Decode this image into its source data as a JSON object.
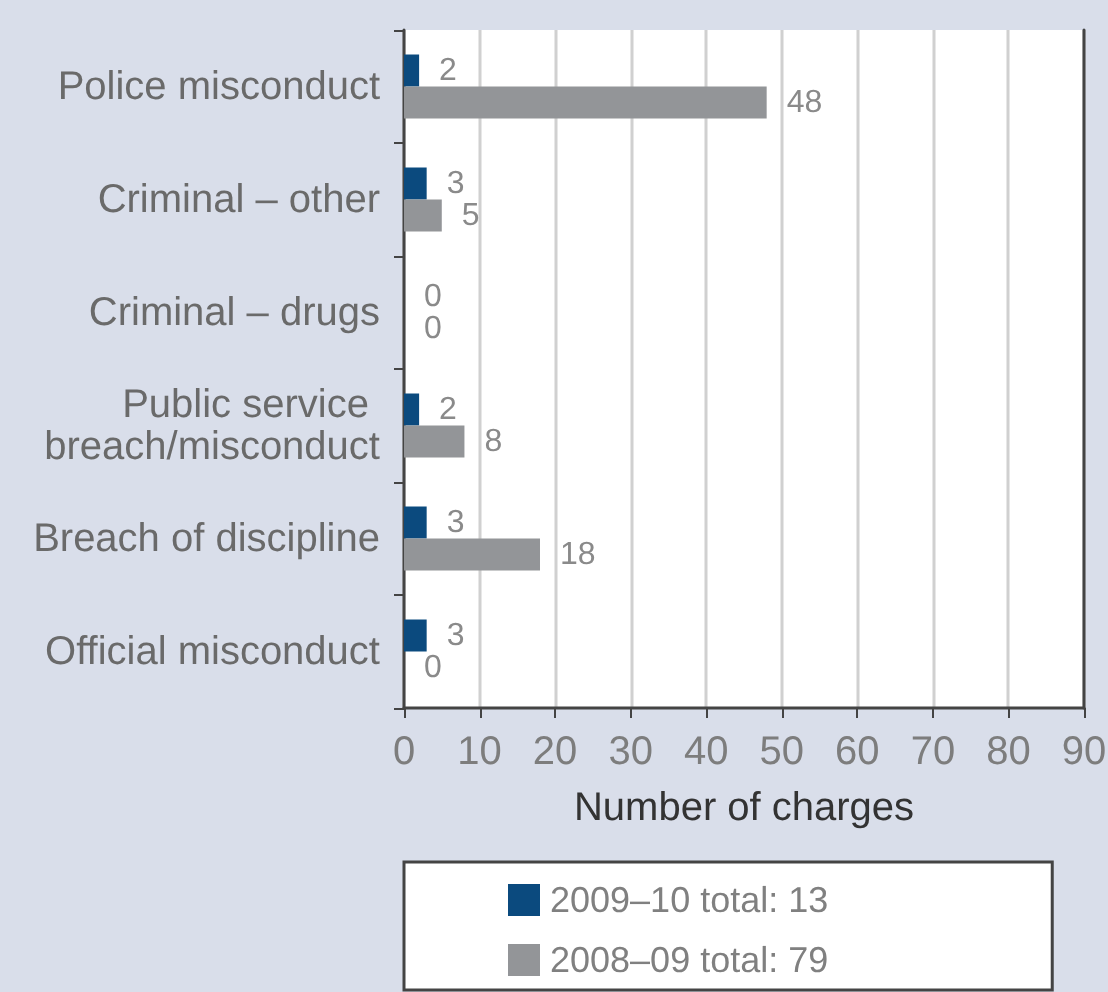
{
  "chart_data": {
    "type": "bar",
    "orientation": "horizontal",
    "categories": [
      "Police misconduct",
      "Criminal – other",
      "Criminal – drugs",
      "Public service breach/misconduct",
      "Breach of discipline",
      "Official misconduct"
    ],
    "series": [
      {
        "name": "2009–10 total: 13",
        "color": "#0b4a7e",
        "values": [
          2,
          3,
          0,
          2,
          3,
          3
        ]
      },
      {
        "name": "2008–09 total: 79",
        "color": "#939598",
        "values": [
          48,
          5,
          0,
          8,
          18,
          0
        ]
      }
    ],
    "xlabel": "Number of charges",
    "xlim": [
      0,
      90
    ],
    "xticks": [
      0,
      10,
      20,
      30,
      40,
      50,
      60,
      70,
      80,
      90
    ],
    "grid": "x",
    "legend": "bottom",
    "data_labels": true
  }
}
